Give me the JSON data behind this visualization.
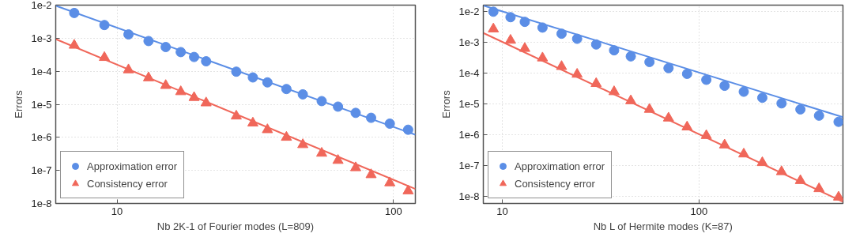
{
  "chart_data": [
    {
      "type": "scatter",
      "xlabel": "Nb 2K-1 of Fourier modes (L=809)",
      "ylabel": "Errors",
      "log": "xy",
      "grid": true,
      "legend": "bottom left",
      "xlim": [
        6,
        120
      ],
      "xticks": [
        10,
        100
      ],
      "ylim": [
        1e-08,
        0.01
      ],
      "yticks": [
        {
          "value": 1e-08,
          "label": "1e-8"
        },
        {
          "value": 1e-07,
          "label": "1e-7"
        },
        {
          "value": 1e-06,
          "label": "1e-6"
        },
        {
          "value": 1e-05,
          "label": "1e-5"
        },
        {
          "value": 0.0001,
          "label": "1e-4"
        },
        {
          "value": 0.001,
          "label": "1e-3"
        },
        {
          "value": 0.01,
          "label": "1e-2"
        }
      ],
      "x": [
        7,
        9,
        11,
        13,
        15,
        17,
        19,
        21,
        27,
        31,
        35,
        41,
        47,
        55,
        63,
        73,
        83,
        97,
        113
      ],
      "series": [
        {
          "type": "line",
          "color": "#5b8ee6",
          "x": [
            6,
            120
          ],
          "values": [
            0.0096,
            1.2e-06
          ]
        },
        {
          "type": "line",
          "color": "#f0675a",
          "x": [
            6,
            120
          ],
          "values": [
            0.00094,
            2.75e-08
          ]
        },
        {
          "name": "Approximation error",
          "marker": "circle",
          "color": "#5b8ee6",
          "values": [
            0.0058,
            0.0025,
            0.0013,
            0.00082,
            0.00054,
            0.00038,
            0.00027,
            0.0002,
            9.7e-05,
            6.5e-05,
            4.6e-05,
            2.9e-05,
            2e-05,
            1.25e-05,
            8.5e-06,
            5.5e-06,
            3.9e-06,
            2.6e-06,
            1.7e-06
          ]
        },
        {
          "name": "Consistency error",
          "marker": "triangle",
          "color": "#f0675a",
          "values": [
            0.00061,
            0.00026,
            0.00011,
            6.3e-05,
            3.7e-05,
            2.4e-05,
            1.6e-05,
            1.1e-05,
            4.4e-06,
            2.7e-06,
            1.7e-06,
            1e-06,
            6e-07,
            3.3e-07,
            2e-07,
            1.2e-07,
            7.4e-08,
            4.2e-08,
            2.4e-08
          ]
        }
      ]
    },
    {
      "type": "scatter",
      "xlabel": "Nb L of Hermite modes (K=87)",
      "ylabel": "Errors",
      "log": "xy",
      "grid": true,
      "legend": "bottom left",
      "xlim": [
        8,
        540
      ],
      "xticks": [
        10,
        100
      ],
      "ylim": [
        6e-09,
        0.016
      ],
      "yticks": [
        {
          "value": 1e-08,
          "label": "1e-8"
        },
        {
          "value": 1e-07,
          "label": "1e-7"
        },
        {
          "value": 1e-06,
          "label": "1e-6"
        },
        {
          "value": 1e-05,
          "label": "1e-5"
        },
        {
          "value": 0.0001,
          "label": "1e-4"
        },
        {
          "value": 0.001,
          "label": "1e-3"
        },
        {
          "value": 0.01,
          "label": "1e-2"
        }
      ],
      "x": [
        9,
        11,
        13,
        16,
        20,
        24,
        30,
        37,
        45,
        56,
        70,
        87,
        109,
        135,
        169,
        210,
        263,
        328,
        408,
        513
      ],
      "series": [
        {
          "type": "line",
          "color": "#5b8ee6",
          "x": [
            8,
            540
          ],
          "values": [
            0.0156,
            3.75e-06
          ]
        },
        {
          "type": "line",
          "color": "#f0675a",
          "x": [
            8,
            540
          ],
          "values": [
            0.002,
            6.8e-09
          ]
        },
        {
          "name": "Approximation error",
          "marker": "circle",
          "color": "#5b8ee6",
          "values": [
            0.0098,
            0.0065,
            0.0046,
            0.003,
            0.0019,
            0.0013,
            0.00085,
            0.00055,
            0.00035,
            0.00023,
            0.000146,
            9.5e-05,
            6.1e-05,
            3.9e-05,
            2.5e-05,
            1.6e-05,
            1.05e-05,
            6.7e-06,
            4.2e-06,
            2.65e-06
          ]
        },
        {
          "name": "Consistency error",
          "marker": "triangle",
          "color": "#f0675a",
          "values": [
            0.0027,
            0.00116,
            0.00063,
            0.00031,
            0.000164,
            9.2e-05,
            4.6e-05,
            2.5e-05,
            1.27e-05,
            6.7e-06,
            3.5e-06,
            1.8e-06,
            9.5e-07,
            4.7e-07,
            2.4e-07,
            1.26e-07,
            6.4e-08,
            3.3e-08,
            1.8e-08,
            9.6e-09
          ]
        }
      ]
    }
  ]
}
